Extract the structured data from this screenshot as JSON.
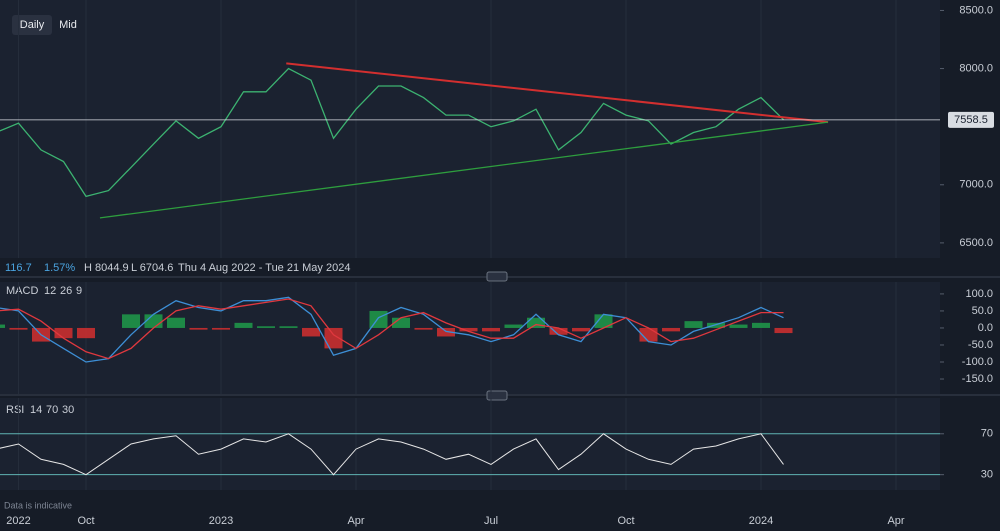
{
  "toolbar": {
    "buttons": [
      "Daily",
      "Mid"
    ]
  },
  "info": {
    "change": 116.7,
    "change_pct": "1.57%",
    "high": "H 8044.9",
    "low": "L 6704.6",
    "range": "Thu 4 Aug 2022 - Tue 21 May 2024"
  },
  "footer": "Data is indicative",
  "chart_data": [
    {
      "type": "line",
      "grid": true,
      "categories": [
        null,
        "2022",
        null,
        null,
        "Oct",
        null,
        null,
        null,
        null,
        null,
        "2023",
        null,
        null,
        null,
        null,
        null,
        "Apr",
        null,
        null,
        null,
        null,
        null,
        "Jul",
        null,
        null,
        null,
        null,
        null,
        "Oct",
        null,
        null,
        null,
        null,
        null,
        "2024",
        null,
        null,
        null,
        null,
        null,
        "Apr",
        null
      ],
      "series": [
        {
          "color": "#3cb371",
          "values": [
            7450,
            7530,
            7300,
            7200,
            6900,
            6950,
            7150,
            7350,
            7550,
            7400,
            7500,
            7800,
            7800,
            8000,
            7900,
            7400,
            7650,
            7850,
            7850,
            7750,
            7600,
            7600,
            7500,
            7550,
            7650,
            7300,
            7450,
            7700,
            7600,
            7550,
            7350,
            7450,
            7500,
            7650,
            7750,
            7560,
            null,
            null,
            null,
            null,
            null,
            null
          ]
        }
      ],
      "trendlines": [
        {
          "color": "#d32f2f",
          "x": [
            12.9,
            36.98
          ],
          "values": [
            8045,
            7539
          ]
        },
        {
          "color": "#2e9e3e",
          "x": [
            4.62,
            36.98
          ],
          "values": [
            6715,
            7539
          ]
        }
      ],
      "last_price": 7558.5,
      "ylim": [
        6370,
        8590
      ],
      "yticks": [
        {
          "value": 6500,
          "label": "6500.0"
        },
        {
          "value": 7000,
          "label": "7000.0"
        },
        {
          "value": 8000,
          "label": "8000.0"
        },
        {
          "value": 8500,
          "label": "8500.0"
        }
      ]
    },
    {
      "type": "macd",
      "title": "MACD",
      "params": [
        12,
        26,
        9
      ],
      "up_color": "#1e9b4a",
      "down_color": "#d32f2f",
      "series": [
        {
          "color": "#3d8fd6",
          "values": [
            60,
            50,
            -20,
            -60,
            -100,
            -90,
            -20,
            40,
            80,
            60,
            50,
            80,
            80,
            90,
            40,
            -80,
            -60,
            30,
            60,
            40,
            -10,
            -20,
            -40,
            -20,
            40,
            -20,
            -40,
            40,
            30,
            -40,
            -50,
            -10,
            10,
            30,
            60,
            30
          ]
        },
        {
          "color": "#e0383e",
          "values": [
            50,
            55,
            20,
            -30,
            -70,
            -90,
            -60,
            0,
            50,
            65,
            55,
            65,
            75,
            85,
            65,
            -20,
            -60,
            -20,
            30,
            45,
            15,
            -10,
            -30,
            -30,
            10,
            0,
            -30,
            0,
            30,
            0,
            -40,
            -30,
            -5,
            20,
            45,
            45
          ]
        }
      ],
      "histogram": [
        10,
        -5,
        -40,
        -30,
        -30,
        0,
        40,
        40,
        30,
        -5,
        -5,
        15,
        5,
        5,
        -25,
        -60,
        0,
        50,
        30,
        -5,
        -25,
        -10,
        -10,
        10,
        30,
        -20,
        -10,
        40,
        0,
        -40,
        -10,
        20,
        15,
        10,
        15,
        -15
      ],
      "ylim": [
        -194,
        135
      ],
      "yticks": [
        {
          "value": 100,
          "label": "100.0"
        },
        {
          "value": 50,
          "label": "50.0"
        },
        {
          "value": 0,
          "label": "0.0"
        },
        {
          "value": -50,
          "label": "-50.0"
        },
        {
          "value": -100,
          "label": "-100.0"
        },
        {
          "value": -150,
          "label": "-150.0"
        }
      ]
    },
    {
      "type": "rsi",
      "title": "RSI",
      "params": [
        14,
        70,
        30
      ],
      "grid": true,
      "grid_color": "#5fb3b3",
      "series": [
        {
          "color": "#e6e6e6",
          "values": [
            55,
            60,
            45,
            40,
            30,
            45,
            60,
            65,
            68,
            50,
            55,
            65,
            62,
            70,
            55,
            30,
            55,
            65,
            62,
            55,
            45,
            50,
            40,
            55,
            65,
            35,
            50,
            70,
            55,
            45,
            40,
            55,
            58,
            65,
            70,
            40
          ]
        }
      ],
      "ylim": [
        15,
        105
      ],
      "yticks": [
        70,
        30
      ]
    }
  ]
}
